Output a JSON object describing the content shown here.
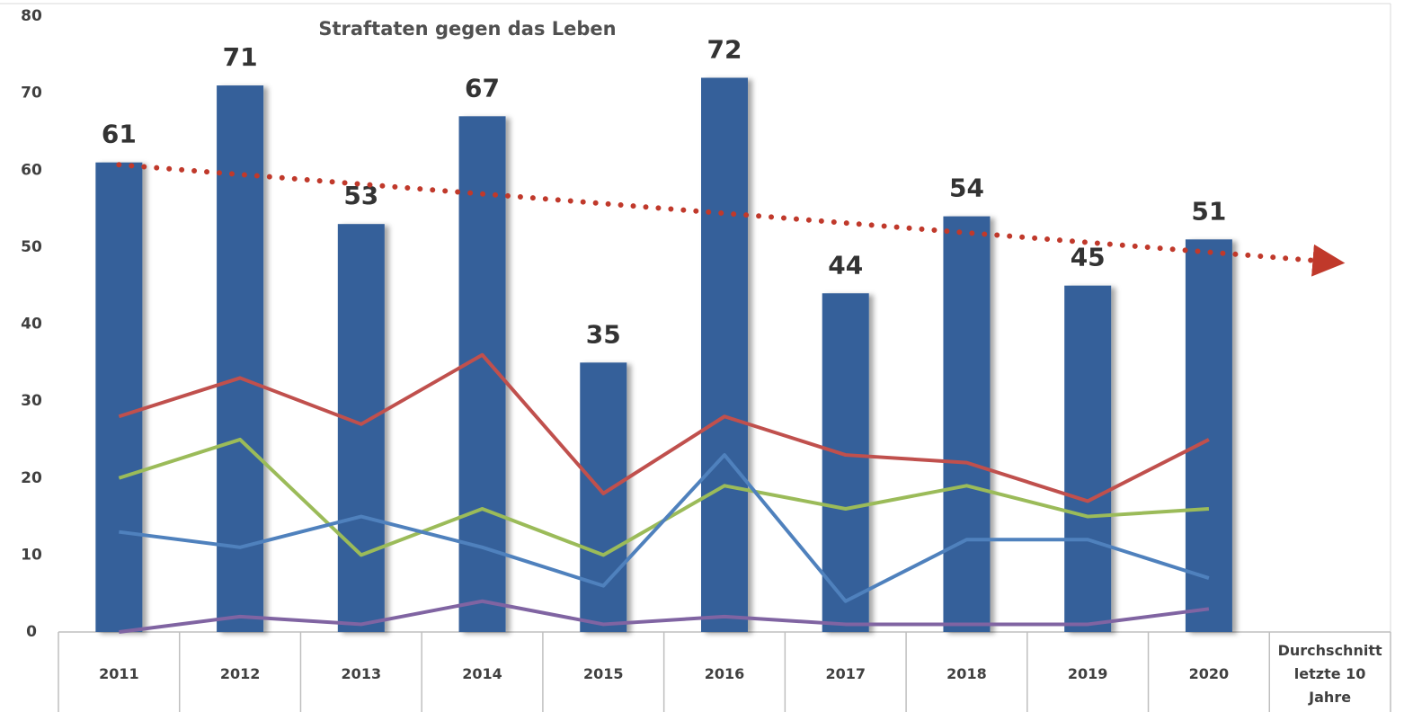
{
  "chart_data": {
    "type": "bar",
    "title": "Straftaten gegen das Leben",
    "categories": [
      "2011",
      "2012",
      "2013",
      "2014",
      "2015",
      "2016",
      "2017",
      "2018",
      "2019",
      "2020",
      "Durchschnitt letzte 10 Jahre"
    ],
    "values": [
      61,
      71,
      53,
      67,
      35,
      72,
      44,
      54,
      45,
      51,
      null
    ],
    "color": "#34609a",
    "series": [
      {
        "color": "#c0504d",
        "values": [
          28,
          33,
          27,
          36,
          18,
          28,
          23,
          22,
          17,
          25,
          null
        ]
      },
      {
        "color": "#9bbb59",
        "values": [
          20,
          25,
          10,
          16,
          10,
          19,
          16,
          19,
          15,
          16,
          null
        ]
      },
      {
        "color": "#4f81bd",
        "values": [
          13,
          11,
          15,
          11,
          6,
          23,
          4,
          12,
          12,
          7,
          null
        ]
      },
      {
        "color": "#8064a2",
        "values": [
          0,
          2,
          1,
          4,
          1,
          2,
          1,
          1,
          1,
          3,
          null
        ]
      }
    ],
    "trend": {
      "color": "#c0392b",
      "start": 60.7,
      "end": 48.2
    },
    "ylim": [
      0,
      80
    ],
    "yticks": [
      0,
      10,
      20,
      30,
      40,
      50,
      60,
      70,
      80
    ],
    "grid": false
  }
}
